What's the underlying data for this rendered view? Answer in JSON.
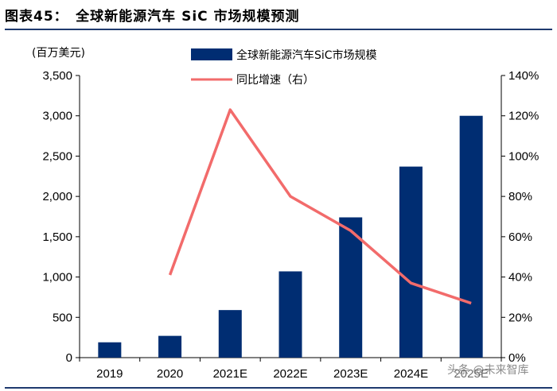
{
  "header": {
    "figure_title": "图表45：　全球新能源汽车 SiC 市场规模预测",
    "unit_label": "(百万美元)"
  },
  "watermark": "头条 @未来智库",
  "colors": {
    "bar": "#002d72",
    "line": "#f26b6b",
    "rule": "#1f3a6e"
  },
  "chart_data": {
    "type": "bar",
    "title": "全球新能源汽车 SiC 市场规模预测",
    "categories": [
      "2019",
      "2020",
      "2021E",
      "2022E",
      "2023E",
      "2024E",
      "2025E"
    ],
    "series": [
      {
        "name": "全球新能源汽车SiC市场规模",
        "type": "bar",
        "axis": "left",
        "values": [
          190,
          270,
          590,
          1070,
          1740,
          2370,
          3000
        ]
      },
      {
        "name": "同比增速（右）",
        "type": "line",
        "axis": "right",
        "values": [
          null,
          0.41,
          1.23,
          0.8,
          0.63,
          0.37,
          0.27
        ]
      }
    ],
    "y_left": {
      "min": 0,
      "max": 3500,
      "ticks": [
        "0",
        "500",
        "1,000",
        "1,500",
        "2,000",
        "2,500",
        "3,000",
        "3,500"
      ]
    },
    "y_right": {
      "min": 0,
      "max": 1.4,
      "ticks": [
        "0%",
        "20%",
        "40%",
        "60%",
        "80%",
        "100%",
        "120%",
        "140%"
      ]
    },
    "legend": "top",
    "grid": false
  }
}
